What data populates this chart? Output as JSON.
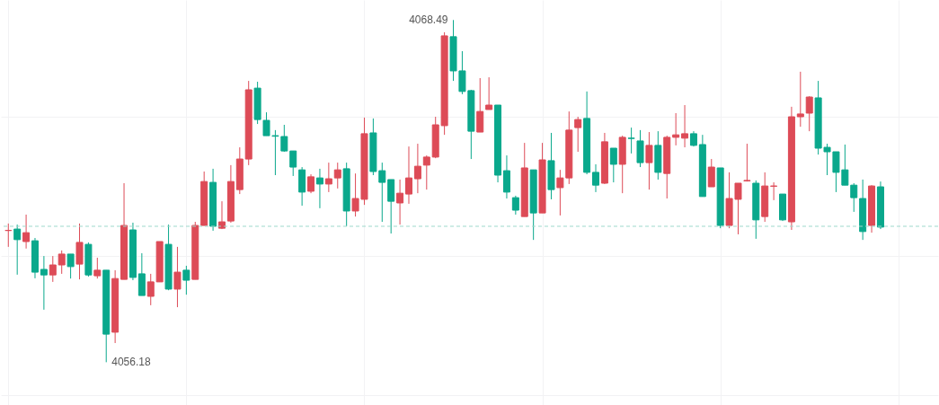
{
  "chart_data": {
    "type": "candlestick",
    "categories": [
      null,
      null,
      null,
      null,
      null,
      null,
      null,
      null,
      null,
      null,
      null,
      null,
      null,
      null,
      null,
      null,
      null,
      null,
      null,
      null,
      null,
      null,
      null,
      null,
      null,
      null,
      null,
      null,
      null,
      null,
      null,
      null,
      null,
      null,
      null,
      null,
      null,
      null,
      null,
      null,
      null,
      null,
      null,
      null,
      null,
      null,
      null,
      null,
      null,
      null,
      null,
      null,
      null,
      null,
      null,
      null,
      null,
      null,
      null,
      null,
      null,
      null,
      null,
      null,
      null,
      null,
      null,
      null,
      null,
      null,
      null,
      null,
      null,
      null,
      null,
      null,
      null,
      null,
      null,
      null,
      null,
      null,
      null,
      null,
      null,
      null,
      null,
      null,
      null,
      null,
      null,
      null,
      null,
      null,
      null,
      null,
      null,
      null,
      null
    ],
    "ohlc": [
      [
        4060.92,
        4061.17,
        4060.33,
        4060.92
      ],
      [
        4060.97,
        4061.13,
        4059.33,
        4060.59
      ],
      [
        4060.52,
        4061.49,
        4060.27,
        4060.84
      ],
      [
        4060.55,
        4060.65,
        4059.2,
        4059.42
      ],
      [
        4059.52,
        4060.0,
        4058.07,
        4059.32
      ],
      [
        4059.32,
        4060.0,
        4059.07,
        4059.68
      ],
      [
        4059.68,
        4060.2,
        4059.36,
        4060.07
      ],
      [
        4060.07,
        4060.07,
        4059.19,
        4059.62
      ],
      [
        4059.71,
        4061.17,
        4059.16,
        4060.49
      ],
      [
        4060.42,
        4060.49,
        4059.26,
        4059.32
      ],
      [
        4059.29,
        4059.94,
        4059.19,
        4059.49
      ],
      [
        4059.49,
        4059.49,
        4056.18,
        4057.19
      ],
      [
        4057.26,
        4059.49,
        4056.87,
        4059.19
      ],
      [
        4059.16,
        4062.62,
        4059.16,
        4061.1
      ],
      [
        4060.94,
        4061.2,
        4059.13,
        4059.23
      ],
      [
        4059.36,
        4060.1,
        4058.58,
        4058.58
      ],
      [
        4058.55,
        4059.36,
        4058.23,
        4059.07
      ],
      [
        4059.07,
        4060.52,
        4059.07,
        4060.52
      ],
      [
        4060.42,
        4061.13,
        4058.77,
        4058.81
      ],
      [
        4058.81,
        4060.33,
        4058.16,
        4059.42
      ],
      [
        4059.49,
        4059.65,
        4058.61,
        4059.13
      ],
      [
        4059.16,
        4061.23,
        4059.16,
        4061.1
      ],
      [
        4061.1,
        4063.04,
        4061.1,
        4062.68
      ],
      [
        4062.65,
        4063.14,
        4060.91,
        4061.07
      ],
      [
        4061.0,
        4061.97,
        4060.97,
        4061.23
      ],
      [
        4061.26,
        4063.27,
        4061.2,
        4062.68
      ],
      [
        4062.39,
        4063.91,
        4062.23,
        4063.49
      ],
      [
        4063.49,
        4066.3,
        4063.27,
        4065.98
      ],
      [
        4066.04,
        4066.27,
        4064.75,
        4064.91
      ],
      [
        4064.88,
        4065.17,
        4064.33,
        4064.33
      ],
      [
        4064.33,
        4064.53,
        4062.91,
        4064.31
      ],
      [
        4064.3,
        4064.72,
        4063.75,
        4063.78
      ],
      [
        4063.78,
        4063.78,
        4062.88,
        4063.2
      ],
      [
        4063.1,
        4063.2,
        4061.81,
        4062.3
      ],
      [
        4062.33,
        4062.94,
        4062.26,
        4062.85
      ],
      [
        4062.81,
        4063.14,
        4061.72,
        4062.59
      ],
      [
        4062.59,
        4063.36,
        4062.3,
        4062.78
      ],
      [
        4062.81,
        4063.36,
        4062.43,
        4063.1
      ],
      [
        4063.14,
        4063.36,
        4061.07,
        4061.62
      ],
      [
        4061.62,
        4062.97,
        4061.42,
        4062.07
      ],
      [
        4062.04,
        4064.98,
        4061.84,
        4064.4
      ],
      [
        4064.43,
        4064.95,
        4062.91,
        4063.04
      ],
      [
        4063.07,
        4063.36,
        4061.23,
        4062.65
      ],
      [
        4062.75,
        4062.75,
        4060.81,
        4061.97
      ],
      [
        4061.91,
        4062.75,
        4061.13,
        4062.26
      ],
      [
        4062.23,
        4063.94,
        4061.88,
        4062.81
      ],
      [
        4062.78,
        4064.04,
        4062.26,
        4063.23
      ],
      [
        4063.27,
        4063.62,
        4062.39,
        4063.56
      ],
      [
        4063.56,
        4065.01,
        4063.52,
        4064.72
      ],
      [
        4064.69,
        4068.05,
        4064.36,
        4067.92
      ],
      [
        4067.89,
        4068.49,
        4066.3,
        4066.66
      ],
      [
        4066.66,
        4067.37,
        4065.82,
        4065.92
      ],
      [
        4065.95,
        4065.98,
        4063.49,
        4064.49
      ],
      [
        4064.46,
        4066.4,
        4064.46,
        4065.2
      ],
      [
        4065.27,
        4066.43,
        4065.27,
        4065.43
      ],
      [
        4065.43,
        4065.43,
        4062.65,
        4062.91
      ],
      [
        4063.07,
        4063.62,
        4062.07,
        4062.3
      ],
      [
        4062.1,
        4062.17,
        4061.49,
        4061.65
      ],
      [
        4061.42,
        4064.07,
        4061.42,
        4063.17
      ],
      [
        4063.1,
        4063.1,
        4060.58,
        4061.55
      ],
      [
        4061.55,
        4064.07,
        4061.55,
        4063.46
      ],
      [
        4063.43,
        4064.43,
        4062.04,
        4062.39
      ],
      [
        4062.46,
        4063.1,
        4061.46,
        4062.81
      ],
      [
        4062.81,
        4065.2,
        4062.59,
        4064.53
      ],
      [
        4064.62,
        4065.01,
        4063.75,
        4064.91
      ],
      [
        4064.95,
        4065.92,
        4062.94,
        4063.01
      ],
      [
        4063.01,
        4063.3,
        4062.3,
        4062.55
      ],
      [
        4062.62,
        4064.43,
        4062.59,
        4064.11
      ],
      [
        4063.88,
        4063.88,
        4062.65,
        4063.3
      ],
      [
        4063.3,
        4064.33,
        4062.26,
        4064.27
      ],
      [
        4064.24,
        4064.62,
        4063.69,
        4064.23
      ],
      [
        4064.14,
        4064.53,
        4063.2,
        4063.36
      ],
      [
        4063.36,
        4064.46,
        4062.39,
        4063.98
      ],
      [
        4063.98,
        4064.49,
        4062.75,
        4063.01
      ],
      [
        4062.97,
        4064.33,
        4062.07,
        4064.27
      ],
      [
        4064.27,
        4065.14,
        4063.98,
        4064.36
      ],
      [
        4064.24,
        4065.43,
        4063.91,
        4064.4
      ],
      [
        4064.4,
        4064.49,
        4063.94,
        4063.98
      ],
      [
        4064.01,
        4064.36,
        4062.14,
        4062.14
      ],
      [
        4062.49,
        4063.49,
        4062.49,
        4063.2
      ],
      [
        4063.17,
        4063.17,
        4061.0,
        4061.1
      ],
      [
        4061.1,
        4063.01,
        4061.0,
        4062.07
      ],
      [
        4062.04,
        4062.62,
        4060.78,
        4062.62
      ],
      [
        4062.7,
        4064.04,
        4062.68,
        4062.72
      ],
      [
        4062.62,
        4062.72,
        4060.62,
        4061.3
      ],
      [
        4061.42,
        4063.01,
        4061.23,
        4062.52
      ],
      [
        4062.51,
        4062.65,
        4062.01,
        4062.52
      ],
      [
        4062.23,
        4062.23,
        4061.26,
        4061.3
      ],
      [
        4061.23,
        4065.37,
        4060.94,
        4065.01
      ],
      [
        4065.01,
        4066.63,
        4064.65,
        4065.11
      ],
      [
        4065.14,
        4065.75,
        4064.49,
        4065.72
      ],
      [
        4065.69,
        4066.3,
        4063.65,
        4063.88
      ],
      [
        4063.91,
        4064.04,
        4062.91,
        4063.75
      ],
      [
        4063.75,
        4063.75,
        4062.3,
        4063.01
      ],
      [
        4063.1,
        4064.01,
        4062.55,
        4062.55
      ],
      [
        4062.55,
        4062.62,
        4061.59,
        4062.1
      ],
      [
        4062.07,
        4062.75,
        4060.58,
        4060.88
      ],
      [
        4061.1,
        4062.55,
        4060.84,
        4062.52
      ],
      [
        4062.49,
        4062.68,
        4060.97,
        4061.04
      ]
    ],
    "colors": [
      "#dd4b57",
      "#0aa88c",
      "#dd4b57",
      "#0aa88c",
      "#0aa88c",
      "#dd4b57",
      "#dd4b57",
      "#0aa88c",
      "#dd4b57",
      "#0aa88c",
      "#dd4b57",
      "#0aa88c",
      "#dd4b57",
      "#dd4b57",
      "#0aa88c",
      "#0aa88c",
      "#dd4b57",
      "#dd4b57",
      "#0aa88c",
      "#dd4b57",
      "#0aa88c",
      "#dd4b57",
      "#dd4b57",
      "#0aa88c",
      "#dd4b57",
      "#dd4b57",
      "#dd4b57",
      "#dd4b57",
      "#0aa88c",
      "#0aa88c",
      "#0aa88c",
      "#0aa88c",
      "#0aa88c",
      "#0aa88c",
      "#dd4b57",
      "#0aa88c",
      "#dd4b57",
      "#dd4b57",
      "#0aa88c",
      "#dd4b57",
      "#dd4b57",
      "#0aa88c",
      "#0aa88c",
      "#0aa88c",
      "#dd4b57",
      "#dd4b57",
      "#dd4b57",
      "#dd4b57",
      "#dd4b57",
      "#dd4b57",
      "#0aa88c",
      "#0aa88c",
      "#0aa88c",
      "#dd4b57",
      "#dd4b57",
      "#0aa88c",
      "#0aa88c",
      "#0aa88c",
      "#dd4b57",
      "#0aa88c",
      "#dd4b57",
      "#0aa88c",
      "#dd4b57",
      "#dd4b57",
      "#dd4b57",
      "#0aa88c",
      "#0aa88c",
      "#dd4b57",
      "#0aa88c",
      "#dd4b57",
      "#0aa88c",
      "#0aa88c",
      "#dd4b57",
      "#0aa88c",
      "#dd4b57",
      "#dd4b57",
      "#dd4b57",
      "#0aa88c",
      "#0aa88c",
      "#dd4b57",
      "#0aa88c",
      "#dd4b57",
      "#dd4b57",
      "#dd4b57",
      "#0aa88c",
      "#dd4b57",
      "#dd4b57",
      "#0aa88c",
      "#dd4b57",
      "#dd4b57",
      "#dd4b57",
      "#0aa88c",
      "#0aa88c",
      "#0aa88c",
      "#0aa88c",
      "#0aa88c",
      "#0aa88c",
      "#dd4b57",
      "#0aa88c"
    ],
    "annotations": [
      "4068.49",
      "4056.18"
    ],
    "ref_lines": [
      {
        "axis": "y",
        "value": 4061.07,
        "color": "#9fd9cc",
        "line_style": "dashed"
      }
    ],
    "grid": true,
    "tick_labels": false
  }
}
